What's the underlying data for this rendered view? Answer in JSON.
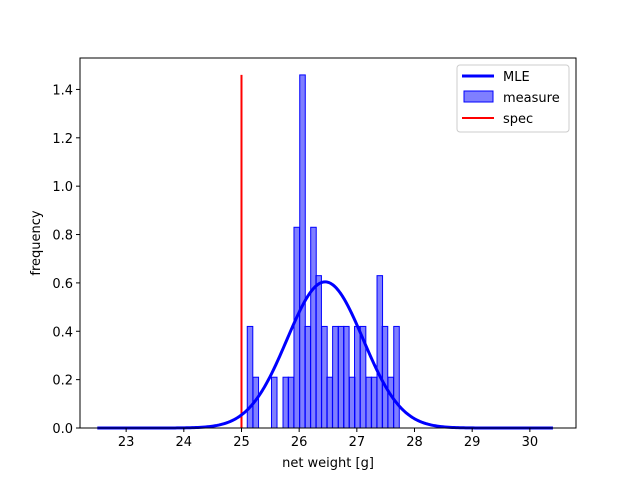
{
  "chart_data": {
    "type": "bar",
    "xlabel": "net weight [g]",
    "ylabel": "frequency",
    "xlim": [
      22.2,
      30.8
    ],
    "ylim": [
      0.0,
      1.53
    ],
    "xticks": [
      23,
      24,
      25,
      26,
      27,
      28,
      29,
      30
    ],
    "yticks": [
      0.0,
      0.2,
      0.4,
      0.6,
      0.8,
      1.0,
      1.2,
      1.4
    ],
    "xtick_labels": [
      "23",
      "24",
      "25",
      "26",
      "27",
      "28",
      "29",
      "30"
    ],
    "ytick_labels": [
      "0.0",
      "0.2",
      "0.4",
      "0.6",
      "0.8",
      "1.0",
      "1.2",
      "1.4"
    ],
    "legend_position": "upper-right",
    "legend": [
      "MLE",
      "measure",
      "spec"
    ],
    "histogram": {
      "name": "measure",
      "color": "#0000ff",
      "bin_width": 0.096,
      "bins": [
        {
          "left": 25.1,
          "value": 0.42
        },
        {
          "left": 25.2,
          "value": 0.21
        },
        {
          "left": 25.52,
          "value": 0.21
        },
        {
          "left": 25.72,
          "value": 0.21
        },
        {
          "left": 25.81,
          "value": 0.21
        },
        {
          "left": 25.91,
          "value": 0.83
        },
        {
          "left": 26.01,
          "value": 1.46
        },
        {
          "left": 26.1,
          "value": 0.42
        },
        {
          "left": 26.2,
          "value": 0.83
        },
        {
          "left": 26.29,
          "value": 0.63
        },
        {
          "left": 26.39,
          "value": 0.42
        },
        {
          "left": 26.48,
          "value": 0.21
        },
        {
          "left": 26.58,
          "value": 0.42
        },
        {
          "left": 26.68,
          "value": 0.42
        },
        {
          "left": 26.77,
          "value": 0.42
        },
        {
          "left": 26.87,
          "value": 0.21
        },
        {
          "left": 26.96,
          "value": 0.42
        },
        {
          "left": 27.06,
          "value": 0.42
        },
        {
          "left": 27.16,
          "value": 0.21
        },
        {
          "left": 27.25,
          "value": 0.21
        },
        {
          "left": 27.35,
          "value": 0.63
        },
        {
          "left": 27.44,
          "value": 0.42
        },
        {
          "left": 27.54,
          "value": 0.21
        },
        {
          "left": 27.64,
          "value": 0.42
        }
      ]
    },
    "mle_curve": {
      "name": "MLE",
      "color": "#0000ff",
      "distribution": "normal",
      "mean": 26.45,
      "std": 0.66,
      "x_range": [
        22.5,
        30.4
      ]
    },
    "spec_line": {
      "name": "spec",
      "color": "#ff0000",
      "x": 25.0,
      "y_range": [
        0.0,
        1.46
      ]
    }
  }
}
